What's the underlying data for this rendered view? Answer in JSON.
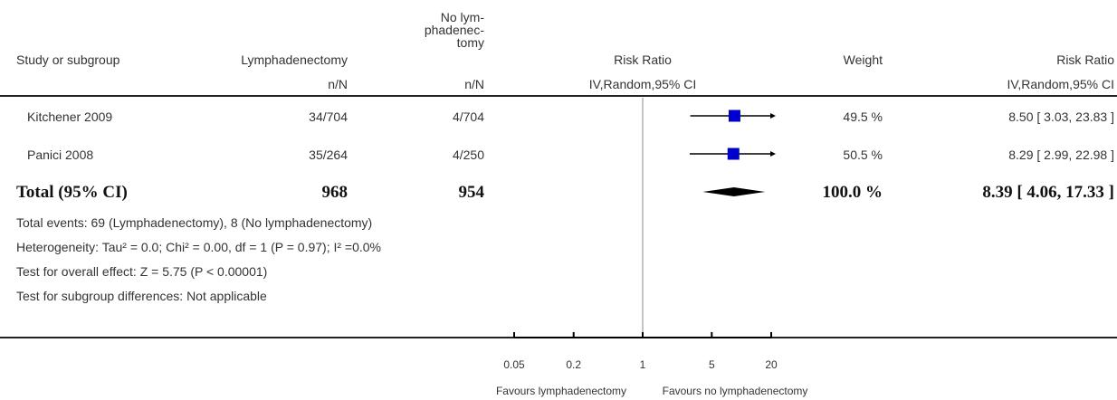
{
  "header": {
    "study_col": "Study or subgroup",
    "exp_col": "Lymphadenectomy",
    "ctrl_col_lines": [
      "No lym-",
      "phadenec-",
      "tomy"
    ],
    "plot_col": "Risk Ratio",
    "weight_col": "Weight",
    "rr_col": "Risk Ratio",
    "exp_sub": "n/N",
    "ctrl_sub": "n/N",
    "plot_sub": "IV,Random,95% CI",
    "rr_sub": "IV,Random,95% CI"
  },
  "studies": [
    {
      "name": "Kitchener 2009",
      "exp": "34/704",
      "ctrl": "4/704",
      "weight": "49.5 %",
      "ci_text": "8.50 [ 3.03, 23.83 ]"
    },
    {
      "name": "Panici 2008",
      "exp": "35/264",
      "ctrl": "4/250",
      "weight": "50.5 %",
      "ci_text": "8.29 [ 2.99, 22.98 ]"
    }
  ],
  "total": {
    "label": "Total (95% CI)",
    "exp": "968",
    "ctrl": "954",
    "weight": "100.0 %",
    "ci_text": "8.39 [ 4.06, 17.33 ]"
  },
  "footnotes": {
    "events": "Total events: 69 (Lymphadenectomy), 8 (No lymphadenectomy)",
    "heterogeneity": "Heterogeneity: Tau² = 0.0; Chi² = 0.00, df = 1 (P = 0.97); I² =0.0%",
    "overall": "Test for overall effect: Z = 5.75 (P < 0.00001)",
    "subgroup": "Test for subgroup differences: Not applicable"
  },
  "axis": {
    "tick_labels": [
      "0.05",
      "0.2",
      "1",
      "5",
      "20"
    ],
    "left_label": "Favours lymphadenectomy",
    "right_label": "Favours no lymphadenectomy"
  },
  "colors": {
    "marker": "#0000cc",
    "diamond": "#000000",
    "line": "#000000"
  },
  "chart_data": {
    "type": "forest",
    "scale": "log",
    "xlim": [
      0.05,
      20
    ],
    "ticks": [
      0.05,
      0.2,
      1,
      5,
      20
    ],
    "null_line": 1,
    "studies": [
      {
        "name": "Kitchener 2009",
        "rr": 8.5,
        "lo": 3.03,
        "hi": 23.83,
        "weight": 49.5
      },
      {
        "name": "Panici 2008",
        "rr": 8.29,
        "lo": 2.99,
        "hi": 22.98,
        "weight": 50.5
      }
    ],
    "pooled": {
      "rr": 8.39,
      "lo": 4.06,
      "hi": 17.33
    }
  }
}
